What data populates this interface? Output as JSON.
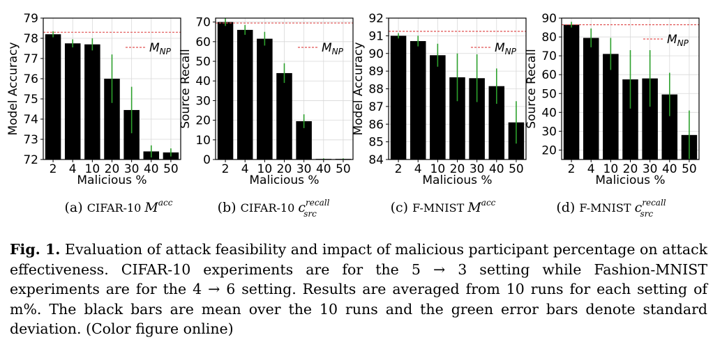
{
  "colors": {
    "bar": "#000000",
    "error": "#2ca02c",
    "reference": "#e05050"
  },
  "reference_label": {
    "base": "M",
    "sub": "NP"
  },
  "chart_data": [
    {
      "type": "bar",
      "caption": {
        "letter": "(a)",
        "dataset": "CIFAR-10",
        "metric": "M",
        "sup": "acc",
        "sub": ""
      },
      "categories": [
        "2",
        "4",
        "10",
        "20",
        "30",
        "40",
        "50"
      ],
      "values": [
        78.2,
        77.75,
        77.7,
        76.0,
        74.45,
        72.4,
        72.35
      ],
      "errors": [
        0.15,
        0.2,
        0.3,
        1.2,
        1.15,
        0.3,
        0.2
      ],
      "reference": 78.3,
      "xlabel": "Malicious %",
      "ylabel": "Model Accuracy",
      "ylim": [
        72,
        79
      ],
      "yticks": [
        72,
        73,
        74,
        75,
        76,
        77,
        78,
        79
      ],
      "legend": "right"
    },
    {
      "type": "bar",
      "caption": {
        "letter": "(b)",
        "dataset": "CIFAR-10",
        "metric": "c",
        "sup": "recall",
        "sub": "src"
      },
      "categories": [
        "2",
        "4",
        "10",
        "20",
        "30",
        "40",
        "50"
      ],
      "values": [
        70.0,
        66.0,
        61.5,
        44.0,
        19.5,
        0.3,
        0.3
      ],
      "errors": [
        2.0,
        2.5,
        3.5,
        5.0,
        3.5,
        0.3,
        0.3
      ],
      "reference": 69.5,
      "xlabel": "Malicious %",
      "ylabel": "Source Recall",
      "ylim": [
        0,
        72
      ],
      "yticks": [
        0,
        10,
        20,
        30,
        40,
        50,
        60,
        70
      ],
      "legend": "right"
    },
    {
      "type": "bar",
      "caption": {
        "letter": "(c)",
        "dataset": "F-MNIST",
        "metric": "M",
        "sup": "acc",
        "sub": ""
      },
      "categories": [
        "2",
        "4",
        "10",
        "20",
        "30",
        "40",
        "50"
      ],
      "values": [
        91.0,
        90.7,
        89.9,
        88.65,
        88.6,
        88.15,
        86.1
      ],
      "errors": [
        0.15,
        0.3,
        0.65,
        1.35,
        1.35,
        1.0,
        1.2
      ],
      "reference": 91.25,
      "xlabel": "Malicious %",
      "ylabel": "Model Accuracy",
      "ylim": [
        84,
        92
      ],
      "yticks": [
        84,
        85,
        86,
        87,
        88,
        89,
        90,
        91,
        92
      ],
      "legend": "right"
    },
    {
      "type": "bar",
      "caption": {
        "letter": "(d)",
        "dataset": "F-MNIST",
        "metric": "c",
        "sup": "recall",
        "sub": "src"
      },
      "categories": [
        "2",
        "4",
        "10",
        "20",
        "30",
        "40",
        "50"
      ],
      "values": [
        86.5,
        79.5,
        71.0,
        57.5,
        58.0,
        49.5,
        28.0
      ],
      "errors": [
        1.5,
        5.0,
        8.5,
        15.5,
        15.0,
        11.5,
        13.0
      ],
      "reference": 86.5,
      "xlabel": "Malicious %",
      "ylabel": "Source Recall",
      "ylim": [
        15,
        90
      ],
      "yticks": [
        20,
        30,
        40,
        50,
        60,
        70,
        80,
        90
      ],
      "legend": "right"
    }
  ],
  "caption": {
    "label": "Fig. 1.",
    "text": "Evaluation of attack feasibility and impact of malicious participant percentage on attack effectiveness. CIFAR-10 experiments are for the 5 → 3 setting while Fashion-MNIST experiments are for the 4 → 6 setting. Results are averaged from 10 runs for each setting of m%. The black bars are mean over the 10 runs and the green error bars denote standard deviation. (Color figure online)"
  }
}
